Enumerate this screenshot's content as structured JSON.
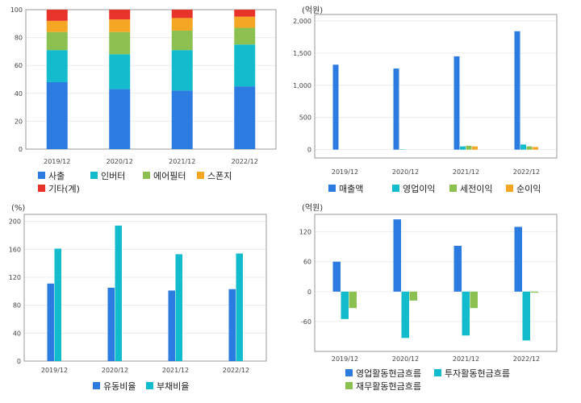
{
  "colors": {
    "blue": "#2b7be0",
    "cyan": "#13bccc",
    "green": "#8cc152",
    "orange": "#f5a623",
    "red": "#e8332a",
    "grid": "#ececec",
    "frame": "#999999"
  },
  "chart_data": [
    {
      "type": "bar",
      "stacked": true,
      "unit_label": "",
      "categories": [
        "2019/12",
        "2020/12",
        "2021/12",
        "2022/12"
      ],
      "ylim": [
        0,
        100
      ],
      "yticks": [
        0,
        20,
        40,
        60,
        80,
        100
      ],
      "grid": true,
      "legend_position": "bottom",
      "series": [
        {
          "name": "사출",
          "values": [
            48,
            43,
            42,
            45
          ],
          "color": "blue"
        },
        {
          "name": "인버터",
          "values": [
            23,
            25,
            29,
            30
          ],
          "color": "cyan"
        },
        {
          "name": "에어필터",
          "values": [
            13,
            16,
            14,
            12
          ],
          "color": "green"
        },
        {
          "name": "스폰지",
          "values": [
            8,
            9,
            9,
            8
          ],
          "color": "orange"
        },
        {
          "name": "기타(계)",
          "values": [
            8,
            7,
            6,
            5
          ],
          "color": "red"
        }
      ]
    },
    {
      "type": "bar",
      "unit_label": "(억원)",
      "categories": [
        "2019/12",
        "2020/12",
        "2021/12",
        "2022/12"
      ],
      "ylim": [
        -130,
        2100
      ],
      "yticks": [
        0,
        500,
        1000,
        1500,
        2000
      ],
      "ytick_labels": [
        "0",
        "500",
        "1,000",
        "1,500",
        "2,000"
      ],
      "grid": true,
      "legend_position": "bottom",
      "series": [
        {
          "name": "매출액",
          "values": [
            1320,
            1260,
            1450,
            1840
          ],
          "color": "blue"
        },
        {
          "name": "영업이익",
          "values": [
            0,
            5,
            50,
            80
          ],
          "color": "cyan"
        },
        {
          "name": "세전이익",
          "values": [
            0,
            0,
            60,
            50
          ],
          "color": "green"
        },
        {
          "name": "순이익",
          "values": [
            0,
            0,
            50,
            40
          ],
          "color": "orange"
        }
      ]
    },
    {
      "type": "bar",
      "unit_label": "(%)",
      "categories": [
        "2019/12",
        "2020/12",
        "2021/12",
        "2022/12"
      ],
      "ylim": [
        0,
        210
      ],
      "yticks": [
        0,
        40,
        80,
        120,
        160,
        200
      ],
      "grid": true,
      "legend_position": "bottom",
      "series": [
        {
          "name": "유동비율",
          "values": [
            111,
            105,
            101,
            103
          ],
          "color": "blue"
        },
        {
          "name": "부채비율",
          "values": [
            161,
            194,
            153,
            154
          ],
          "color": "cyan"
        }
      ]
    },
    {
      "type": "bar",
      "unit_label": "(억원)",
      "categories": [
        "2019/12",
        "2020/12",
        "2021/12",
        "2022/12"
      ],
      "ylim": [
        -120,
        155
      ],
      "yticks": [
        -60,
        0,
        60,
        120
      ],
      "grid": true,
      "legend_position": "bottom",
      "series": [
        {
          "name": "영업활동현금흐름",
          "values": [
            60,
            145,
            92,
            130
          ],
          "color": "blue"
        },
        {
          "name": "투자활동현금흐름",
          "values": [
            -55,
            -93,
            -88,
            -98
          ],
          "color": "cyan"
        },
        {
          "name": "재무활동현금흐름",
          "values": [
            -33,
            -18,
            -33,
            -2
          ],
          "color": "green"
        }
      ]
    }
  ]
}
